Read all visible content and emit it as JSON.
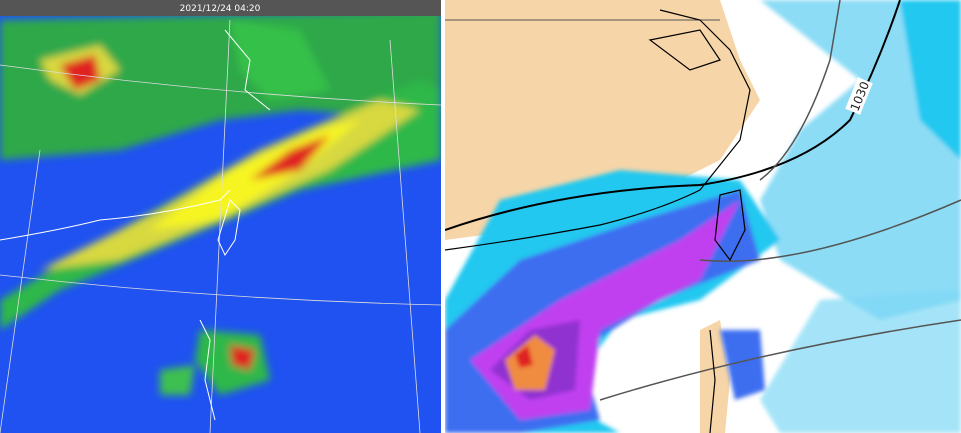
{
  "satellite": {
    "timestamp": "2021/12/24 04:20"
  },
  "model_map": {
    "isobar_label": "1030"
  }
}
